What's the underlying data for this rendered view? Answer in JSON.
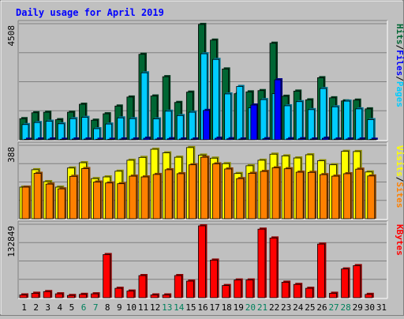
{
  "chart_data": [
    {
      "type": "bar",
      "panel": "hits-files-pages",
      "title": "Daily usage for April 2019",
      "categories": [
        "1",
        "2",
        "3",
        "4",
        "5",
        "6",
        "7",
        "8",
        "9",
        "10",
        "11",
        "12",
        "13",
        "14",
        "15",
        "16",
        "17",
        "18",
        "19",
        "20",
        "21",
        "22",
        "23",
        "24",
        "25",
        "26",
        "27",
        "28",
        "29",
        "30",
        "31"
      ],
      "weekend_days": [
        "6",
        "7",
        "13",
        "14",
        "20",
        "21",
        "27",
        "28"
      ],
      "ymax_label": "4508",
      "ylim": [
        0,
        4508
      ],
      "legend": [
        "Pages",
        "/",
        "Files",
        "/",
        "Hits"
      ],
      "series": [
        {
          "name": "Hits",
          "color": "#006633",
          "values": [
            820,
            1050,
            1070,
            780,
            1070,
            1380,
            760,
            1010,
            1310,
            1660,
            3320,
            1700,
            2450,
            1450,
            1850,
            4480,
            3870,
            2750,
            1790,
            1860,
            1910,
            3750,
            1690,
            1890,
            1550,
            2410,
            1630,
            1510,
            1540,
            1200,
            0
          ]
        },
        {
          "name": "Files",
          "color": "#00ccff",
          "values": [
            590,
            670,
            720,
            620,
            820,
            870,
            430,
            610,
            850,
            820,
            2600,
            810,
            1110,
            940,
            1070,
            3340,
            3120,
            1780,
            2070,
            1240,
            1560,
            1790,
            1320,
            1480,
            1170,
            1990,
            1280,
            1500,
            1200,
            780,
            0
          ]
        },
        {
          "name": "Pages",
          "color": "#0000ff",
          "values": [
            20,
            30,
            30,
            20,
            30,
            30,
            20,
            20,
            30,
            30,
            60,
            30,
            40,
            30,
            30,
            1140,
            60,
            40,
            30,
            1350,
            40,
            2330,
            40,
            40,
            30,
            60,
            30,
            30,
            30,
            20,
            0
          ]
        }
      ]
    },
    {
      "type": "bar",
      "panel": "visits-sites",
      "categories": [
        "1",
        "2",
        "3",
        "4",
        "5",
        "6",
        "7",
        "8",
        "9",
        "10",
        "11",
        "12",
        "13",
        "14",
        "15",
        "16",
        "17",
        "18",
        "19",
        "20",
        "21",
        "22",
        "23",
        "24",
        "25",
        "26",
        "27",
        "28",
        "29",
        "30",
        "31"
      ],
      "ymax_label": "388",
      "ylim": [
        0,
        388
      ],
      "legend": [
        "Sites",
        "/",
        "Visits"
      ],
      "series": [
        {
          "name": "Visits",
          "color": "#ffff00",
          "values": [
            167,
            259,
            196,
            167,
            268,
            296,
            212,
            221,
            251,
            309,
            324,
            367,
            348,
            325,
            376,
            336,
            320,
            291,
            239,
            280,
            309,
            341,
            332,
            321,
            338,
            306,
            285,
            356,
            355,
            247,
            0
          ]
        },
        {
          "name": "Sites",
          "color": "#ff8000",
          "values": [
            167,
            240,
            183,
            158,
            224,
            265,
            194,
            189,
            185,
            225,
            221,
            234,
            259,
            238,
            285,
            325,
            290,
            263,
            212,
            240,
            250,
            269,
            264,
            246,
            245,
            233,
            225,
            238,
            262,
            226,
            0
          ]
        }
      ]
    },
    {
      "type": "bar",
      "panel": "kbytes",
      "categories": [
        "1",
        "2",
        "3",
        "4",
        "5",
        "6",
        "7",
        "8",
        "9",
        "10",
        "11",
        "12",
        "13",
        "14",
        "15",
        "16",
        "17",
        "18",
        "19",
        "20",
        "21",
        "22",
        "23",
        "24",
        "25",
        "26",
        "27",
        "28",
        "29",
        "30",
        "31"
      ],
      "ymax_label": "132849",
      "ylim": [
        0,
        132849
      ],
      "legend": [
        "KBytes"
      ],
      "series": [
        {
          "name": "KBytes",
          "color": "#ff0000",
          "values": [
            5000,
            8000,
            11000,
            7000,
            4000,
            6000,
            7000,
            78000,
            17000,
            12000,
            40000,
            5000,
            5000,
            40000,
            30000,
            130000,
            68000,
            22000,
            32000,
            32000,
            124000,
            108000,
            28000,
            24000,
            17000,
            97000,
            8000,
            52000,
            58000,
            6000,
            0
          ]
        }
      ]
    }
  ],
  "colors": {
    "background": "#c0c0c0",
    "plot_bg": "#c0c0c0",
    "title": "#0000ff",
    "weekday_label": "#000000",
    "weekend_label": "#00805c",
    "gridline": "#808080"
  }
}
